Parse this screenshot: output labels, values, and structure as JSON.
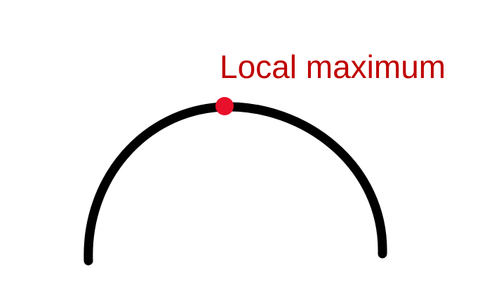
{
  "annotation": {
    "label": "Local maximum",
    "color": "#C00000"
  },
  "curve": {
    "color": "#000000"
  },
  "marker": {
    "color": "#E8102A"
  }
}
